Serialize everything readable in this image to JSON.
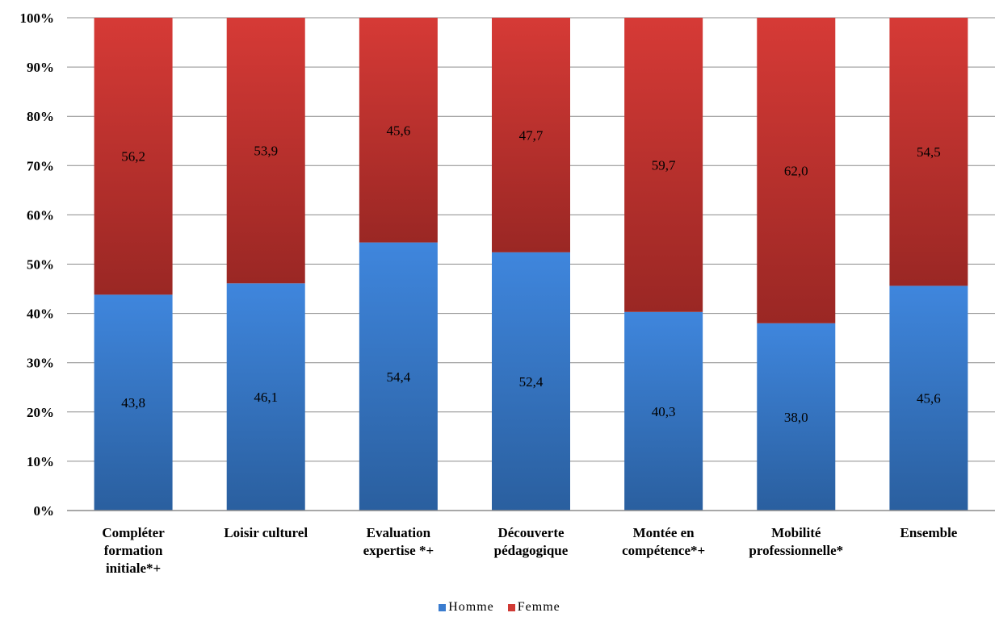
{
  "chart_data": {
    "type": "bar",
    "stacked": true,
    "percent": true,
    "categories": [
      [
        "Compléter",
        "formation",
        "initiale*+"
      ],
      [
        "Loisir culturel"
      ],
      [
        "Evaluation",
        "expertise *+"
      ],
      [
        "Découverte",
        "pédagogique"
      ],
      [
        "Montée en",
        "compétence*+"
      ],
      [
        "Mobilité",
        "professionnelle*"
      ],
      [
        "Ensemble"
      ]
    ],
    "series": [
      {
        "name": "Homme",
        "color": "#3a7ccf",
        "values": [
          43.8,
          46.1,
          54.4,
          52.4,
          40.3,
          38.0,
          45.6
        ],
        "labels": [
          "43,8",
          "46,1",
          "54,4",
          "52,4",
          "40,3",
          "38,0",
          "45,6"
        ]
      },
      {
        "name": "Femme",
        "color": "#d03a35",
        "values": [
          56.2,
          53.9,
          45.6,
          47.7,
          59.7,
          62.0,
          54.5
        ],
        "labels": [
          "56,2",
          "53,9",
          "45,6",
          "47,7",
          "59,7",
          "62,0",
          "54,5"
        ]
      }
    ],
    "ylim": [
      0,
      100
    ],
    "yticks": [
      "0%",
      "10%",
      "20%",
      "30%",
      "40%",
      "50%",
      "60%",
      "70%",
      "80%",
      "90%",
      "100%"
    ],
    "grid": true,
    "legend": "bottom"
  }
}
